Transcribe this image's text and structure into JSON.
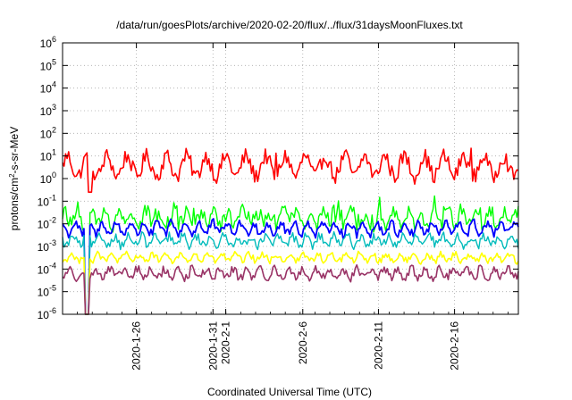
{
  "chart_data": {
    "type": "line",
    "title": "/data/run/goesPlots/archive/2020-02-20/flux/../flux/31daysMoonFluxes.txt",
    "xlabel": "Coordinated Universal Time (UTC)",
    "ylabel": "protons/cm2-s-sr-MeV",
    "ylabel_parts": {
      "pre": "protons/cm",
      "sup": "2",
      "post": "-s-sr-MeV"
    },
    "yscale": "log",
    "ylim_exp": [
      -6,
      6
    ],
    "y_ticks": [
      {
        "base": "10",
        "exp": "-6"
      },
      {
        "base": "10",
        "exp": "-5"
      },
      {
        "base": "10",
        "exp": "-4"
      },
      {
        "base": "10",
        "exp": "-3"
      },
      {
        "base": "10",
        "exp": "-2"
      },
      {
        "base": "10",
        "exp": "-1"
      },
      {
        "base": "10",
        "exp": "0"
      },
      {
        "base": "10",
        "exp": "1"
      },
      {
        "base": "10",
        "exp": "2"
      },
      {
        "base": "10",
        "exp": "3"
      },
      {
        "base": "10",
        "exp": "4"
      },
      {
        "base": "10",
        "exp": "5"
      },
      {
        "base": "10",
        "exp": "6"
      }
    ],
    "x_ticks": [
      "2020-1-26",
      "2020-1-31",
      "2020-2-1",
      "2020-2-6",
      "2020-2-11",
      "2020-2-16"
    ],
    "grid": true,
    "series": [
      {
        "color": "#ff0000",
        "base_log": 0.55,
        "amp": 0.45,
        "noise": 0.35,
        "period": 13,
        "stroke": 1.6
      },
      {
        "color": "#00ff00",
        "base_log": -1.75,
        "amp": 0.3,
        "noise": 0.35,
        "period": 9,
        "stroke": 1.4
      },
      {
        "color": "#0000ff",
        "base_log": -2.2,
        "amp": 0.25,
        "noise": 0.2,
        "period": 9,
        "stroke": 1.8
      },
      {
        "color": "#00bbbb",
        "base_log": -2.75,
        "amp": 0.2,
        "noise": 0.2,
        "period": 9,
        "stroke": 1.4
      },
      {
        "color": "#ffff00",
        "base_log": -3.5,
        "amp": 0.15,
        "noise": 0.15,
        "period": 9,
        "stroke": 1.6
      },
      {
        "color": "#993366",
        "base_log": -4.2,
        "amp": 0.2,
        "noise": 0.2,
        "period": 9,
        "stroke": 1.6
      }
    ]
  }
}
